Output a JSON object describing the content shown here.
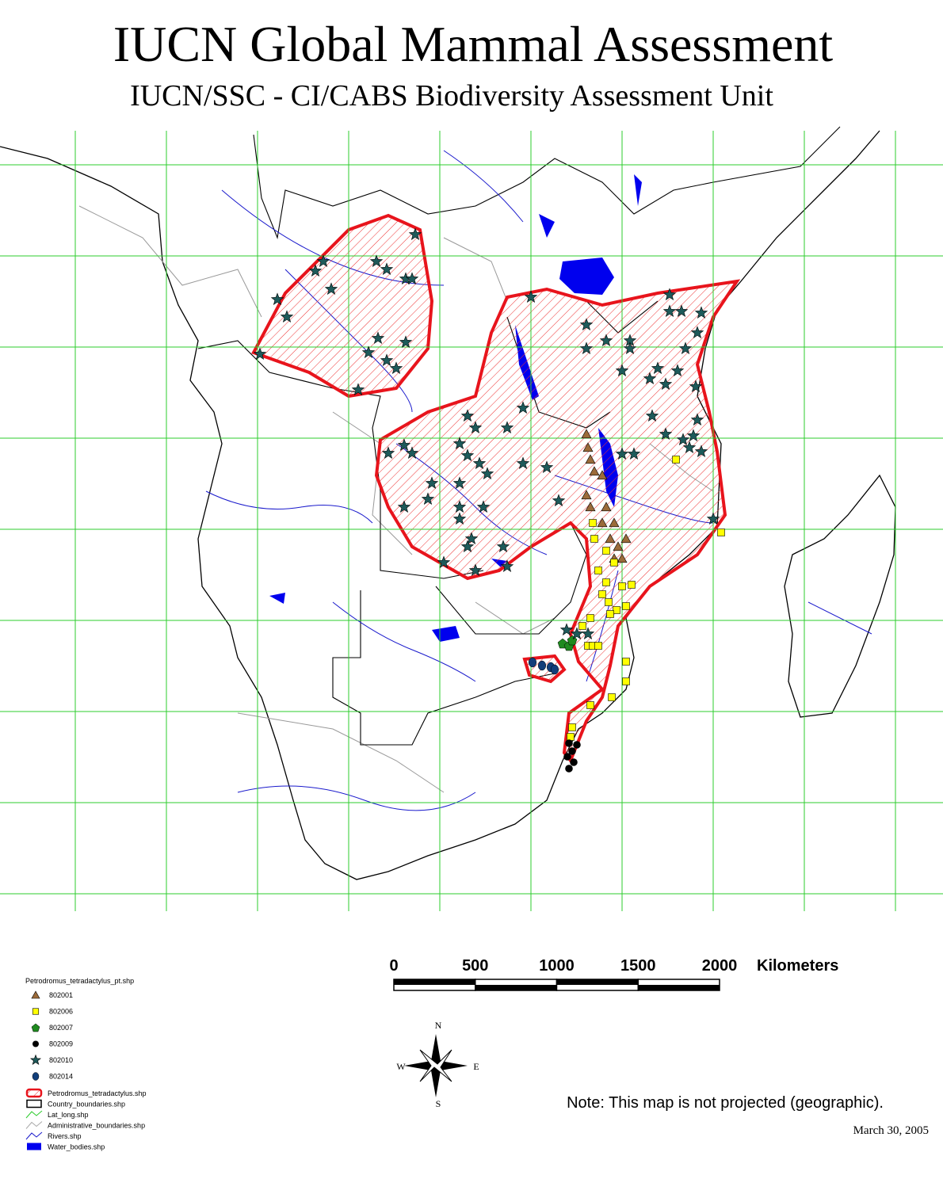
{
  "header": {
    "title": "IUCN Global Mammal Assessment",
    "subtitle": "IUCN/SSC - CI/CABS Biodiversity Assessment Unit"
  },
  "scale_bar": {
    "ticks": [
      0,
      500,
      1000,
      1500,
      2000
    ],
    "unit": "Kilometers"
  },
  "compass": {
    "north": "N",
    "south": "S",
    "east": "E",
    "west": "W"
  },
  "legend": {
    "title": "Petrodromus_tetradactylus_pt.shp",
    "points": [
      "802001",
      "802006",
      "802007",
      "802009",
      "802010",
      "802014"
    ],
    "layers": [
      "Petrodromus_tetradactylus.shp",
      "Country_boundaries.shp",
      "Lat_long.shp",
      "Administrative_boundaries.shp",
      "Rivers.shp",
      "Water_bodies.shp"
    ]
  },
  "note": "Note: This map is not projected (geographic).",
  "date": "March 30, 2005"
}
